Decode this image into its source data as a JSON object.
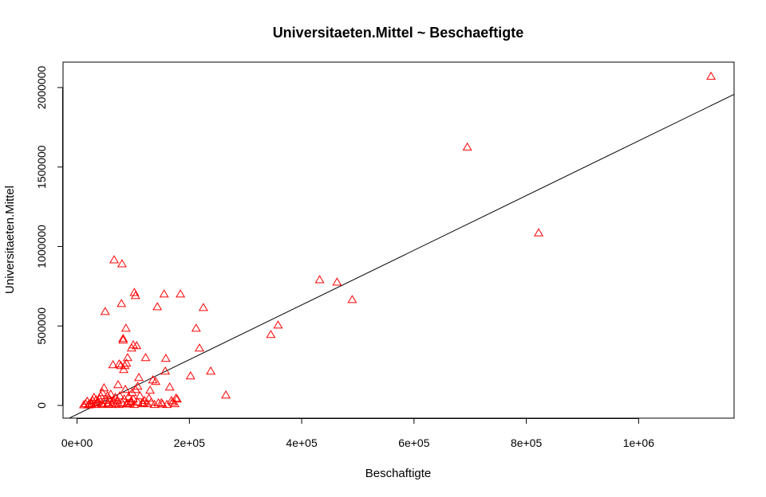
{
  "chart_data": {
    "type": "scatter",
    "title": "Universitaeten.Mittel ~ Beschaeftigte",
    "xlabel": "Beschaftigte",
    "ylabel": "Universitaeten.Mittel",
    "xlim": [
      -25000,
      1170000
    ],
    "ylim": [
      -80000,
      2160000
    ],
    "x_ticks": [
      {
        "value": 0,
        "label": "0e+00"
      },
      {
        "value": 200000,
        "label": "2e+05"
      },
      {
        "value": 400000,
        "label": "4e+05"
      },
      {
        "value": 600000,
        "label": "6e+05"
      },
      {
        "value": 800000,
        "label": "8e+05"
      },
      {
        "value": 1000000,
        "label": "1e+06"
      }
    ],
    "y_ticks": [
      {
        "value": 0,
        "label": "0"
      },
      {
        "value": 500000,
        "label": "500000"
      },
      {
        "value": 1000000,
        "label": "1000000"
      },
      {
        "value": 1500000,
        "label": "1500000"
      },
      {
        "value": 2000000,
        "label": "2000000"
      }
    ],
    "grid": false,
    "marker": "triangle-open",
    "point_color": "#ff0000",
    "line_color": "#000000",
    "fit_line": {
      "intercept": -56000,
      "slope": 1.7206
    },
    "series": [
      {
        "points": [
          [
            1129000,
            2070000
          ],
          [
            695000,
            1625000
          ],
          [
            822000,
            1085000
          ],
          [
            432000,
            790000
          ],
          [
            463000,
            775000
          ],
          [
            490000,
            665000
          ],
          [
            358000,
            505000
          ],
          [
            345000,
            445000
          ],
          [
            265000,
            65000
          ],
          [
            238000,
            215000
          ],
          [
            225000,
            615000
          ],
          [
            218000,
            360000
          ],
          [
            212000,
            485000
          ],
          [
            202000,
            185000
          ],
          [
            184000,
            700000
          ],
          [
            176000,
            45000
          ],
          [
            168000,
            30000
          ],
          [
            165000,
            115000
          ],
          [
            158000,
            295000
          ],
          [
            157000,
            215000
          ],
          [
            155000,
            700000
          ],
          [
            150000,
            15000
          ],
          [
            143000,
            620000
          ],
          [
            140000,
            150000
          ],
          [
            135000,
            160000
          ],
          [
            130000,
            95000
          ],
          [
            122000,
            300000
          ],
          [
            118000,
            10000
          ],
          [
            110000,
            175000
          ],
          [
            108000,
            120000
          ],
          [
            106000,
            375000
          ],
          [
            104000,
            690000
          ],
          [
            102000,
            710000
          ],
          [
            100000,
            380000
          ],
          [
            97000,
            360000
          ],
          [
            95000,
            20000
          ],
          [
            90000,
            300000
          ],
          [
            88000,
            265000
          ],
          [
            87000,
            485000
          ],
          [
            85000,
            250000
          ],
          [
            83000,
            225000
          ],
          [
            82000,
            420000
          ],
          [
            82000,
            410000
          ],
          [
            80000,
            890000
          ],
          [
            79000,
            640000
          ],
          [
            78000,
            250000
          ],
          [
            75000,
            260000
          ],
          [
            73000,
            130000
          ],
          [
            66000,
            915000
          ],
          [
            64000,
            255000
          ],
          [
            60000,
            70000
          ],
          [
            50000,
            590000
          ],
          [
            48000,
            110000
          ],
          [
            45000,
            80000
          ],
          [
            40000,
            40000
          ],
          [
            35000,
            15000
          ],
          [
            30000,
            50000
          ],
          [
            25000,
            5000
          ],
          [
            20000,
            2000
          ],
          [
            15000,
            10000
          ],
          [
            12000,
            3000
          ],
          [
            18000,
            25000
          ],
          [
            22000,
            8000
          ],
          [
            28000,
            30000
          ],
          [
            32000,
            5000
          ],
          [
            38000,
            20000
          ],
          [
            42000,
            60000
          ],
          [
            44000,
            10000
          ],
          [
            52000,
            30000
          ],
          [
            55000,
            15000
          ],
          [
            58000,
            40000
          ],
          [
            62000,
            5000
          ],
          [
            65000,
            20000
          ],
          [
            68000,
            50000
          ],
          [
            70000,
            10000
          ],
          [
            72000,
            30000
          ],
          [
            76000,
            60000
          ],
          [
            80000,
            15000
          ],
          [
            84000,
            40000
          ],
          [
            86000,
            100000
          ],
          [
            90000,
            10000
          ],
          [
            92000,
            55000
          ],
          [
            96000,
            25000
          ],
          [
            98000,
            80000
          ],
          [
            100000,
            40000
          ],
          [
            104000,
            100000
          ],
          [
            108000,
            20000
          ],
          [
            112000,
            60000
          ],
          [
            116000,
            15000
          ],
          [
            120000,
            30000
          ],
          [
            125000,
            10000
          ],
          [
            128000,
            45000
          ],
          [
            132000,
            20000
          ],
          [
            138000,
            5000
          ],
          [
            145000,
            15000
          ],
          [
            152000,
            8000
          ],
          [
            160000,
            5000
          ],
          [
            170000,
            20000
          ],
          [
            174000,
            10000
          ],
          [
            178000,
            40000
          ],
          [
            26000,
            12000
          ],
          [
            34000,
            35000
          ],
          [
            46000,
            5000
          ],
          [
            54000,
            60000
          ],
          [
            56000,
            8000
          ],
          [
            64000,
            30000
          ],
          [
            74000,
            5000
          ],
          [
            88000,
            8000
          ],
          [
            94000,
            12000
          ],
          [
            102000,
            5000
          ]
        ]
      }
    ]
  }
}
